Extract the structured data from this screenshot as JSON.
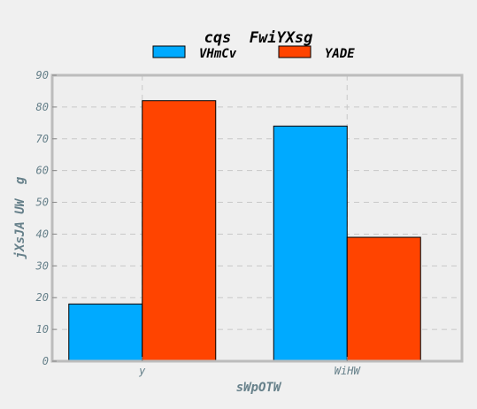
{
  "chart_data": {
    "type": "bar",
    "title": "cqs  FwiYXsg",
    "xlabel": "sWpOTW",
    "ylabel": "jXsJA UW  g",
    "categories": [
      "y",
      "WiHW"
    ],
    "series": [
      {
        "name": "VHmCv",
        "values": [
          18,
          74
        ],
        "color": "#00aaff"
      },
      {
        "name": "YADE",
        "values": [
          82,
          39
        ],
        "color": "#ff4400"
      }
    ],
    "ylim": [
      0,
      90
    ],
    "yticks": [
      0,
      10,
      20,
      30,
      40,
      50,
      60,
      70,
      80,
      90
    ],
    "grid": true,
    "legend_position": "top-center"
  }
}
